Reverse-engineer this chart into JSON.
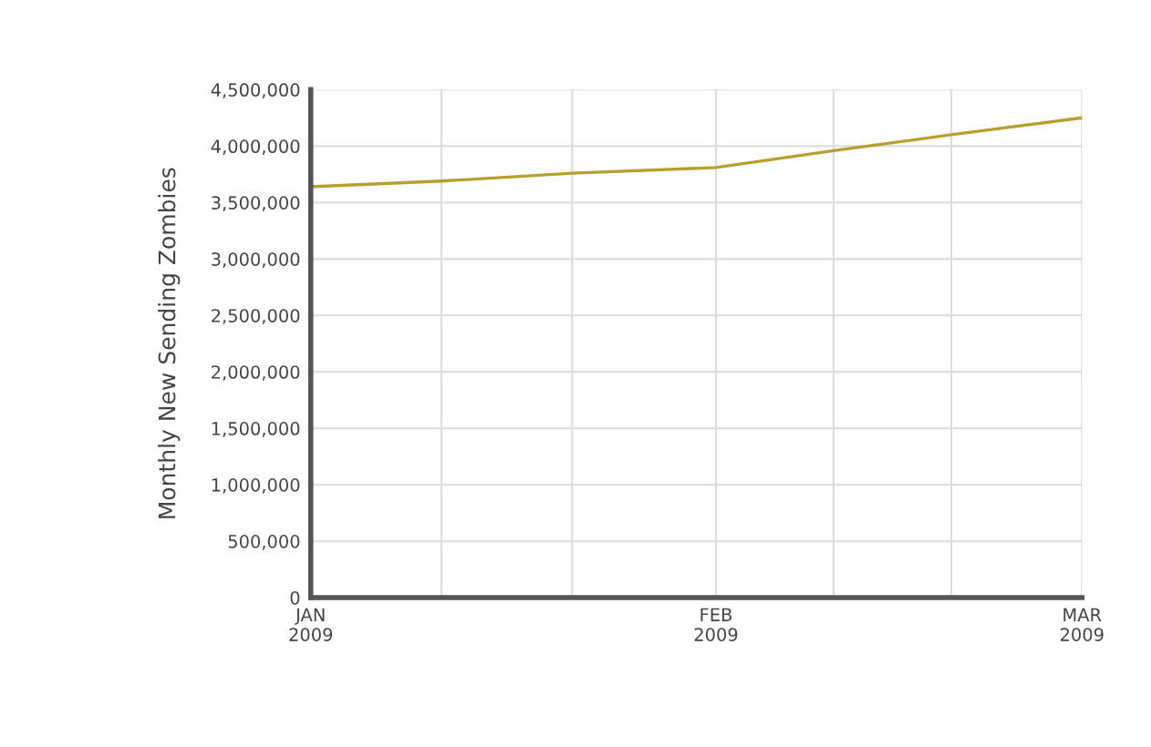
{
  "chart_data": {
    "type": "line",
    "ylabel": "Monthly New Sending Zombies",
    "x": [
      "2009-01-01",
      "2009-01-11",
      "2009-01-21",
      "2009-02-01",
      "2009-02-10",
      "2009-02-19",
      "2009-03-01"
    ],
    "series": [
      {
        "color": "#b8a030",
        "values": [
          3640000,
          3690000,
          3760000,
          3810000,
          3960000,
          4100000,
          4250000
        ]
      }
    ],
    "xlim": [
      "2009-01-01",
      "2009-03-01"
    ],
    "xticks": [
      {
        "value": "2009-01-01",
        "label": "JAN\n2009"
      },
      {
        "value": "2009-01-11",
        "label": null
      },
      {
        "value": "2009-01-21",
        "label": null
      },
      {
        "value": "2009-02-01",
        "label": "FEB\n2009"
      },
      {
        "value": "2009-02-10",
        "label": null
      },
      {
        "value": "2009-02-19",
        "label": null
      },
      {
        "value": "2009-03-01",
        "label": "MAR\n2009"
      }
    ],
    "ylim": [
      0,
      4500000
    ],
    "yticks": [
      {
        "value": 0,
        "label": "0"
      },
      {
        "value": 500000,
        "label": "500,000"
      },
      {
        "value": 1000000,
        "label": "1,000,000"
      },
      {
        "value": 1500000,
        "label": "1,500,000"
      },
      {
        "value": 2000000,
        "label": "2,000,000"
      },
      {
        "value": 2500000,
        "label": "2,500,000"
      },
      {
        "value": 3000000,
        "label": "3,000,000"
      },
      {
        "value": 3500000,
        "label": "3,500,000"
      },
      {
        "value": 4000000,
        "label": "4,000,000"
      },
      {
        "value": 4500000,
        "label": "4,500,000"
      }
    ],
    "grid": true,
    "marker": "none",
    "line_style": "solid"
  }
}
